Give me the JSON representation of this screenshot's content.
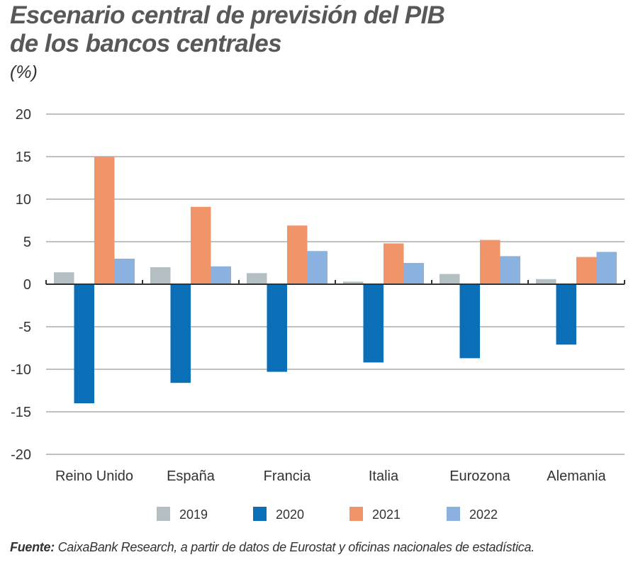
{
  "title_line1": "Escenario central de previsión del PIB",
  "title_line2": "de los bancos centrales",
  "unit": "(%)",
  "source_label": "Fuente:",
  "source_text": " CaixaBank Research, a partir de datos de Eurostat y oficinas nacionales de estadística.",
  "chart_data": {
    "type": "bar",
    "title": "Escenario central de previsión del PIB de los bancos centrales",
    "ylabel": "(%)",
    "xlabel": "",
    "ylim": [
      -20,
      20
    ],
    "yticks": [
      20,
      15,
      10,
      5,
      0,
      -5,
      -10,
      -15,
      -20
    ],
    "grid": true,
    "legend_position": "bottom",
    "categories": [
      "Reino Unido",
      "España",
      "Francia",
      "Italia",
      "Eurozona",
      "Alemania"
    ],
    "series": [
      {
        "name": "2019",
        "color": "#b3bfc2",
        "values": [
          1.4,
          2.0,
          1.3,
          0.3,
          1.2,
          0.6
        ]
      },
      {
        "name": "2020",
        "color": "#0b6fb8",
        "values": [
          -14.0,
          -11.6,
          -10.3,
          -9.2,
          -8.7,
          -7.1
        ]
      },
      {
        "name": "2021",
        "color": "#f0956a",
        "values": [
          15.0,
          9.1,
          6.9,
          4.8,
          5.2,
          3.2
        ]
      },
      {
        "name": "2022",
        "color": "#8ab1e0",
        "values": [
          3.0,
          2.1,
          3.9,
          2.5,
          3.3,
          3.8
        ]
      }
    ]
  }
}
